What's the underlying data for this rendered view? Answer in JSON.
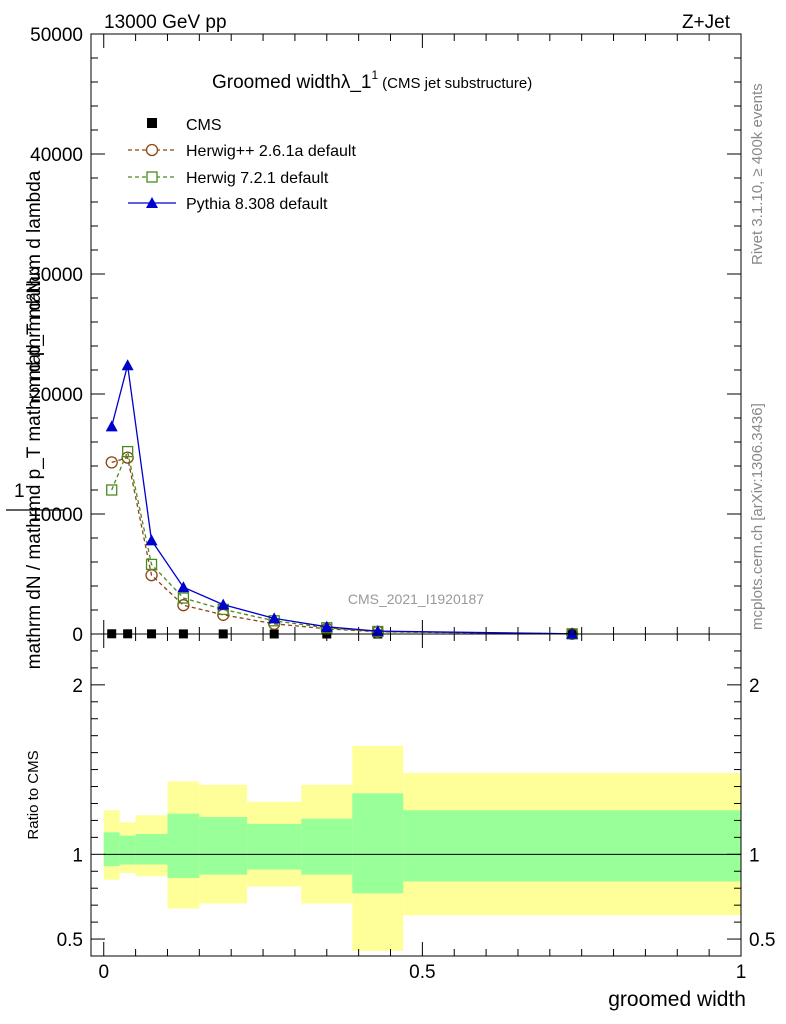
{
  "header": {
    "energy_label": "13000 GeV pp",
    "process_label": "Z+Jet"
  },
  "side_labels": {
    "rivet": "Rivet 3.1.10, ≥ 400k events",
    "mcplots": "mcplots.cern.ch [arXiv:1306.3436]"
  },
  "chart_data": [
    {
      "type": "line",
      "title": "Groomed widthλ_1",
      "title_superscript": "1",
      "subtitle": "(CMS jet substructure)",
      "watermark": "CMS_2021_I1920187",
      "ylabel_numerator": "1",
      "ylabel_upper": "mathrm d²N",
      "ylabel_lower": "mathrm dN / mathrmd p_T mathrm d p_T mathrm d lambda",
      "ylim": [
        0,
        50000
      ],
      "xlim": [
        -0.02,
        1.0
      ],
      "yticks": [
        0,
        10000,
        20000,
        30000,
        40000,
        50000
      ],
      "ytick_labels": [
        "0",
        "10000",
        "20000",
        "30000",
        "40000",
        "50000"
      ],
      "legend_position": "top-left",
      "x": [
        0.0125,
        0.0375,
        0.075,
        0.125,
        0.1875,
        0.2675,
        0.35,
        0.43,
        0.735
      ],
      "series": [
        {
          "name": "CMS",
          "marker": "square-filled",
          "color": "#000000",
          "values": [
            18,
            16,
            13,
            9,
            5.5,
            2.8,
            1.3,
            0.5,
            0.05
          ]
        },
        {
          "name": "Herwig++ 2.6.1a default",
          "marker": "circle-open",
          "color": "#8b4513",
          "dash": true,
          "values": [
            14300,
            14700,
            4900,
            2400,
            1600,
            850,
            430,
            180,
            12
          ]
        },
        {
          "name": "Herwig 7.2.1 default",
          "marker": "square-open",
          "color": "#4a8a1e",
          "dash": true,
          "values": [
            12000,
            15200,
            5800,
            3000,
            2050,
            1100,
            520,
            210,
            14
          ]
        },
        {
          "name": "Pythia 8.308 default",
          "marker": "triangle-filled",
          "color": "#0000cc",
          "dash": false,
          "values": [
            17300,
            22400,
            7800,
            3900,
            2450,
            1300,
            600,
            240,
            16
          ]
        }
      ]
    },
    {
      "type": "area",
      "ylabel": "Ratio to CMS",
      "xlabel": "groomed width",
      "ylim": [
        0.4,
        2.3
      ],
      "yticks": [
        0.5,
        1,
        2
      ],
      "ytick_labels": [
        "0.5",
        "1",
        "2"
      ],
      "xticks": [
        0,
        0.5,
        1
      ],
      "xtick_labels": [
        "0",
        "0.5",
        "1"
      ],
      "bin_edges": [
        0.0,
        0.025,
        0.05,
        0.1,
        0.15,
        0.225,
        0.31,
        0.39,
        0.47,
        1.0
      ],
      "band_stat_syst_low": [
        0.85,
        0.89,
        0.87,
        0.68,
        0.71,
        0.81,
        0.71,
        0.43,
        0.64
      ],
      "band_stat_syst_high": [
        1.26,
        1.19,
        1.23,
        1.43,
        1.41,
        1.31,
        1.41,
        1.64,
        1.48
      ],
      "band_stat_low": [
        0.93,
        0.94,
        0.94,
        0.86,
        0.88,
        0.91,
        0.88,
        0.77,
        0.84
      ],
      "band_stat_high": [
        1.13,
        1.11,
        1.12,
        1.24,
        1.22,
        1.18,
        1.21,
        1.36,
        1.26
      ],
      "band_outer_color": "#ffff99",
      "band_inner_color": "#99ff99",
      "reference_line": 1
    }
  ]
}
